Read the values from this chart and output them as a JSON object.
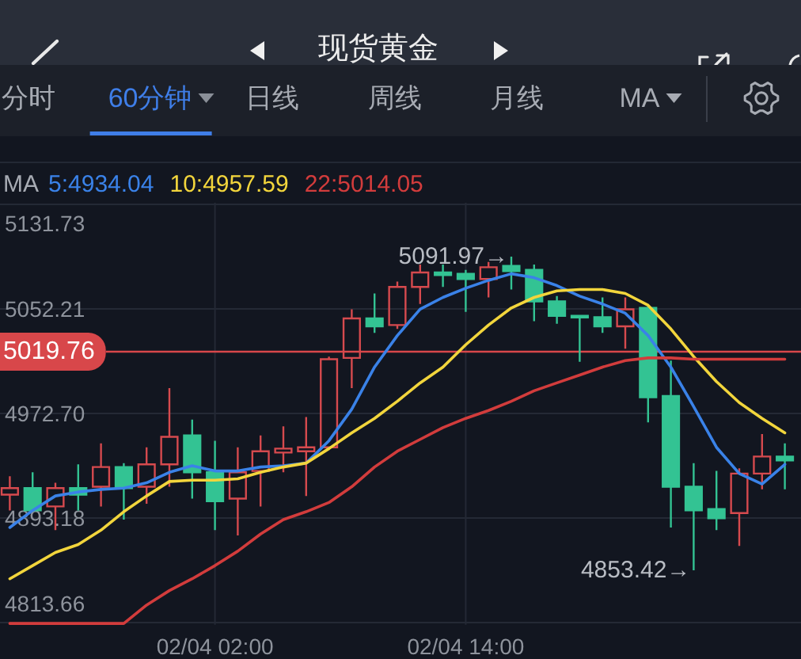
{
  "chart_data": {
    "type": "candlestick",
    "title": "现货黄金",
    "annotations": [
      "5091.97→",
      "4853.42→",
      "分时",
      "60分钟",
      "日线",
      "周线",
      "月线",
      "MA"
    ],
    "legend_title": "MA",
    "legend": "top left",
    "categories": [
      null,
      null,
      null,
      null,
      null,
      null,
      null,
      null,
      null,
      "02/04 02:00",
      null,
      null,
      null,
      null,
      null,
      null,
      null,
      null,
      null,
      null,
      "02/04 14:00",
      null,
      null,
      null,
      null,
      null,
      null,
      null,
      null,
      null,
      null,
      null,
      null,
      null,
      null
    ],
    "ohlc": [
      [
        4911,
        4925,
        4899,
        4916
      ],
      [
        4916,
        4928,
        4898,
        4899
      ],
      [
        4902,
        4920,
        4884,
        4916
      ],
      [
        4916,
        4934,
        4899,
        4911
      ],
      [
        4917,
        4950,
        4902,
        4932
      ],
      [
        4932,
        4935,
        4892,
        4916
      ],
      [
        4917,
        4947,
        4904,
        4934
      ],
      [
        4934,
        4992,
        4917,
        4955
      ],
      [
        4956,
        4968,
        4908,
        4928
      ],
      [
        4928,
        4952,
        4884,
        4906
      ],
      [
        4908,
        4947,
        4880,
        4928
      ],
      [
        4929,
        4956,
        4902,
        4944
      ],
      [
        4943,
        4963,
        4928,
        4946
      ],
      [
        4944,
        4970,
        4910,
        4947
      ],
      [
        4947,
        5016,
        4945,
        5014
      ],
      [
        5015,
        5052,
        4992,
        5045
      ],
      [
        5045,
        5064,
        5034,
        5039
      ],
      [
        5040,
        5073,
        5037,
        5069
      ],
      [
        5069,
        5086,
        5056,
        5080
      ],
      [
        5080,
        5086,
        5069,
        5078
      ],
      [
        5079,
        5082,
        5050,
        5075
      ],
      [
        5075,
        5088,
        5061,
        5084
      ],
      [
        5085,
        5091.97,
        5067,
        5081
      ],
      [
        5082,
        5086,
        5043,
        5058
      ],
      [
        5058,
        5062,
        5041,
        5047
      ],
      [
        5047,
        5047,
        5012,
        5046
      ],
      [
        5046,
        5061,
        5034,
        5039
      ],
      [
        5039,
        5061,
        5022,
        5052
      ],
      [
        5053,
        5054,
        4966,
        4985
      ],
      [
        4986,
        5013,
        4886,
        4917
      ],
      [
        4917,
        4935,
        4853.42,
        4899
      ],
      [
        4900,
        4929,
        4884,
        4893
      ],
      [
        4897,
        4931,
        4872,
        4927
      ],
      [
        4927,
        4957,
        4915,
        4940
      ],
      [
        4940,
        4950,
        4915,
        4937
      ]
    ],
    "colors": [
      "#d64a4e",
      "#33c393",
      "#d64a4e",
      "#33c393",
      "#d64a4e",
      "#33c393",
      "#d64a4e",
      "#d64a4e",
      "#33c393",
      "#33c393",
      "#d64a4e",
      "#d64a4e",
      "#d64a4e",
      "#d64a4e",
      "#d64a4e",
      "#d64a4e",
      "#33c393",
      "#d64a4e",
      "#d64a4e",
      "#33c393",
      "#33c393",
      "#d64a4e",
      "#33c393",
      "#33c393",
      "#33c393",
      "#33c393",
      "#33c393",
      "#d64a4e",
      "#33c393",
      "#33c393",
      "#33c393",
      "#33c393",
      "#d64a4e",
      "#d64a4e",
      "#33c393"
    ],
    "series": [
      {
        "name": "5:4934.04",
        "type": "line",
        "color": "#3a82e8",
        "values": [
          4886,
          4899,
          4910,
          4913,
          4915,
          4916,
          4920,
          4928,
          4933,
          4929,
          4929,
          4932,
          4933,
          4935,
          4952,
          4976,
          5008,
          5032,
          5052,
          5061,
          5068,
          5074,
          5079,
          5076,
          5070,
          5062,
          5056,
          5049,
          5032,
          5008,
          4978,
          4947,
          4927,
          4919,
          4934
        ]
      },
      {
        "name": "10:4957.59",
        "type": "line",
        "color": "#f2d53c",
        "values": [
          4847,
          4857,
          4867,
          4873,
          4884,
          4898,
          4910,
          4921,
          4922,
          4922,
          4923,
          4928,
          4932,
          4935,
          4946,
          4958,
          4969,
          4982,
          4996,
          5008,
          5025,
          5040,
          5053,
          5061,
          5066,
          5067,
          5067,
          5064,
          5055,
          5037,
          5016,
          4997,
          4981,
          4969,
          4958
        ]
      },
      {
        "name": "22:5014.05",
        "type": "line",
        "color": "#d23c3c",
        "values": [
          4813,
          4813,
          4813,
          4813,
          4813,
          4813,
          4827,
          4838,
          4847,
          4857,
          4868,
          4881,
          4892,
          4898,
          4905,
          4917,
          4932,
          4944,
          4953,
          4962,
          4969,
          4975,
          4982,
          4990,
          4996,
          5002,
          5008,
          5013,
          5015,
          5015,
          5014,
          5014,
          5014,
          5014,
          5014
        ]
      }
    ],
    "ylim": [
      4812,
      5133
    ],
    "yticks": [
      4813.66,
      4893.18,
      {
        "value": 4972.7,
        "label": "4972.70"
      },
      5052.21,
      5131.73
    ],
    "grid": true,
    "ref_lines": [
      {
        "axis": "y",
        "value": 5019.76,
        "label": "5019.76",
        "color": "#d8474a"
      }
    ]
  }
}
